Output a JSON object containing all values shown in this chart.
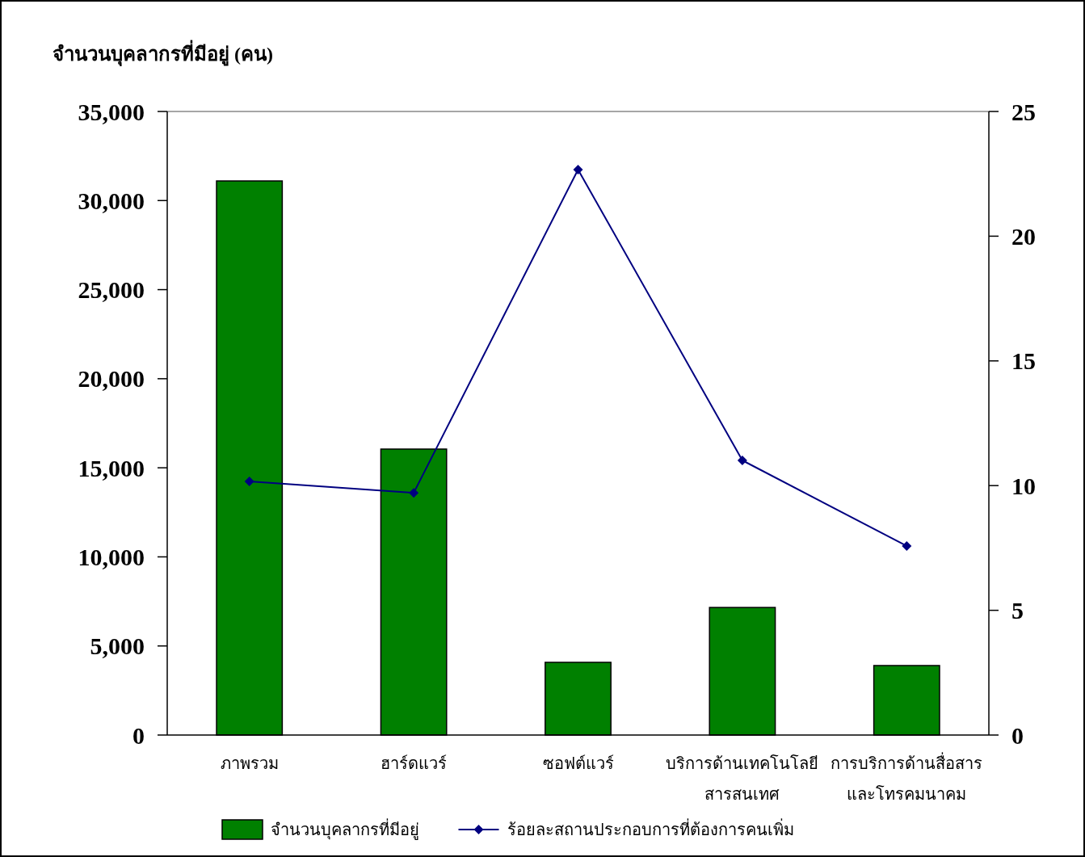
{
  "chart_data": {
    "type": "bar",
    "ylabel": "จำนวนบุคลากรที่มีอยู่ (คน)",
    "categories": [
      "ภาพรวม",
      "ฮาร์ดแวร์",
      "ซอฟต์แวร์",
      "บริการด้านเทคโนโลยี\nสารสนเทศ",
      "การบริการด้านสื่อสาร\nและโทรคมนาคม"
    ],
    "series": [
      {
        "name": "จำนวนบุคลากรที่มีอยู่",
        "color": "#008000",
        "values": [
          31100,
          16050,
          4080,
          7160,
          3900
        ]
      },
      {
        "name": "ร้อยละสถานประกอบการที่ต้องการคนเพิ่ม",
        "type": "line",
        "axis": "y2",
        "color": "#000080",
        "marker": "diamond",
        "values": [
          10.17,
          9.71,
          22.67,
          11.01,
          7.58
        ]
      }
    ],
    "ylim": [
      0,
      35000
    ],
    "yticks": [
      {
        "value": 0,
        "label": "0"
      },
      {
        "value": 5000,
        "label": "5,000"
      },
      {
        "value": 10000,
        "label": "10,000"
      },
      {
        "value": 15000,
        "label": "15,000"
      },
      {
        "value": 20000,
        "label": "20,000"
      },
      {
        "value": 25000,
        "label": "25,000"
      },
      {
        "value": 30000,
        "label": "30,000"
      },
      {
        "value": 35000,
        "label": "35,000"
      }
    ],
    "y2lim": [
      0,
      25
    ],
    "y2ticks": [
      0,
      5,
      10,
      15,
      20,
      25
    ],
    "grid": false,
    "legend": "bottom"
  }
}
